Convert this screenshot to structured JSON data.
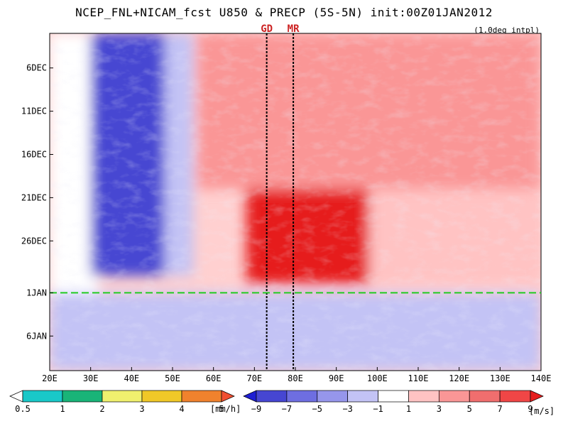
{
  "title": "NCEP_FNL+NICAM_fcst U850 & PRECP (5S-5N) init:00Z01JAN2012",
  "subtitle": "(1.0deg intpl)",
  "markers": [
    {
      "label": "GD",
      "x": 73
    },
    {
      "label": "MR",
      "x": 79.5
    }
  ],
  "init_line_label": "1JAN",
  "colors": {
    "init_line": "#22cc22",
    "marker_line": "#000000",
    "marker_text": "#cc2222"
  },
  "chart_data": {
    "type": "heatmap",
    "title": "NCEP_FNL+NICAM_fcst U850 & PRECP (5S-5N) init:00Z01JAN2012",
    "xlim": [
      20,
      140
    ],
    "x_ticks": [
      20,
      30,
      40,
      50,
      60,
      70,
      80,
      90,
      100,
      110,
      120,
      130,
      140
    ],
    "x_tick_labels": [
      "20E",
      "30E",
      "40E",
      "50E",
      "60E",
      "70E",
      "80E",
      "90E",
      "100E",
      "110E",
      "120E",
      "130E",
      "140E"
    ],
    "ylim": [
      "2DEC2011",
      "10JAN2012"
    ],
    "y_ticks": [
      "2011-12-06",
      "2011-12-11",
      "2011-12-16",
      "2011-12-21",
      "2011-12-26",
      "2012-01-01",
      "2012-01-06"
    ],
    "y_tick_labels": [
      "6DEC",
      "11DEC",
      "16DEC",
      "21DEC",
      "26DEC",
      "1JAN",
      "6JAN"
    ],
    "u850_regions": [
      {
        "lon": [
          20,
          32
        ],
        "dates": [
          "2011-12-02",
          "2012-01-10"
        ],
        "u850": 1
      },
      {
        "lon": [
          30,
          48
        ],
        "dates": [
          "2011-12-02",
          "2011-12-30"
        ],
        "u850": -7
      },
      {
        "lon": [
          48,
          55
        ],
        "dates": [
          "2011-12-02",
          "2011-12-30"
        ],
        "u850": -2
      },
      {
        "lon": [
          56,
          140
        ],
        "dates": [
          "2011-12-02",
          "2011-12-20"
        ],
        "u850": 4
      },
      {
        "lon": [
          68,
          98
        ],
        "dates": [
          "2011-12-20",
          "2011-12-31"
        ],
        "u850": 10
      },
      {
        "lon": [
          98,
          140
        ],
        "dates": [
          "2011-12-20",
          "2011-12-31"
        ],
        "u850": 3
      },
      {
        "lon": [
          20,
          140
        ],
        "dates": [
          "2012-01-01",
          "2012-01-10"
        ],
        "u850": -2
      }
    ],
    "colorbar_precip": {
      "unit": "[mm/h]",
      "levels": [
        0.5,
        1,
        2,
        3,
        4,
        5
      ],
      "colors": [
        "#ffffff",
        "#19c8c8",
        "#19b478",
        "#f0f06e",
        "#f0c828",
        "#f0822d",
        "#f05032"
      ]
    },
    "colorbar_u850": {
      "unit": "[m/s]",
      "levels": [
        -9,
        -7,
        -5,
        -3,
        -1,
        1,
        3,
        5,
        7,
        9
      ],
      "colors": [
        "#1e1ed2",
        "#4646d2",
        "#6e6ee1",
        "#9696eb",
        "#c3c3f5",
        "#ffffff",
        "#ffc3c3",
        "#fa9696",
        "#f06e6e",
        "#f04646",
        "#e61e1e"
      ]
    }
  }
}
